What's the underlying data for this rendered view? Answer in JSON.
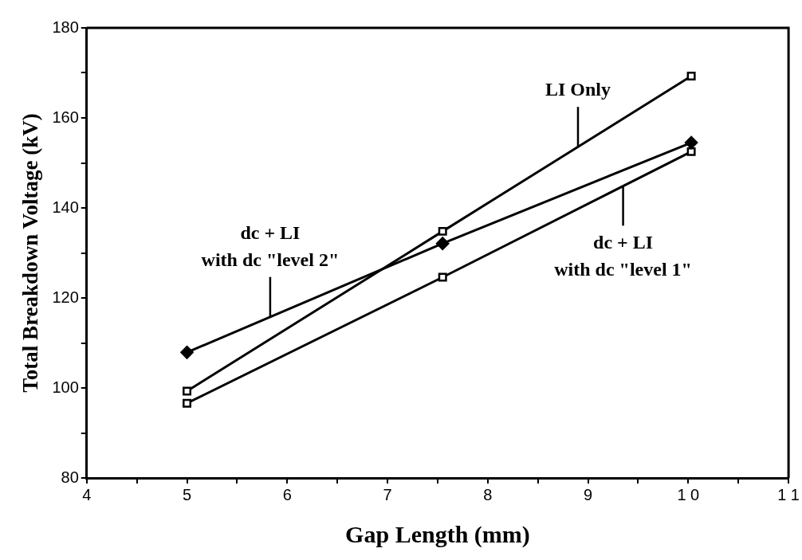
{
  "chart_data": {
    "type": "line",
    "xlabel": "Gap Length (mm)",
    "ylabel": "Total Breakdown Voltage (kV)",
    "xlim": [
      4,
      11
    ],
    "xticks": [
      4,
      {
        "value": 4.5,
        "label": null
      },
      5,
      {
        "value": 5.5,
        "label": null
      },
      6,
      {
        "value": 6.5,
        "label": null
      },
      7,
      {
        "value": 7.5,
        "label": null
      },
      8,
      {
        "value": 8.5,
        "label": null
      },
      9,
      {
        "value": 9.5,
        "label": null
      },
      {
        "value": 10,
        "label": "1 0"
      },
      {
        "value": 10.5,
        "label": null
      },
      {
        "value": 11,
        "label": "1 1"
      }
    ],
    "ylim": [
      80,
      180
    ],
    "yticks": [
      80,
      {
        "value": 90,
        "label": null
      },
      100,
      {
        "value": 110,
        "label": null
      },
      120,
      {
        "value": 130,
        "label": null
      },
      140,
      {
        "value": 150,
        "label": null
      },
      160,
      {
        "value": 170,
        "label": null
      },
      180
    ],
    "grid": false,
    "legend": false,
    "line_style": "solid",
    "series": [
      {
        "color": "#000000",
        "marker": "square",
        "x": [
          5,
          7.55,
          10.03
        ],
        "values": [
          99.3,
          134.8,
          169.3
        ]
      },
      {
        "color": "#000000",
        "marker": "diamond",
        "x": [
          5,
          7.55,
          10.03
        ],
        "values": [
          107.9,
          132.1,
          154.5
        ]
      },
      {
        "color": "#000000",
        "marker": "square",
        "x": [
          5,
          7.55,
          10.03
        ],
        "values": [
          96.6,
          124.6,
          152.5
        ]
      }
    ],
    "annotations": [
      {
        "text": "LI Only",
        "x": 8.9,
        "y": 153.6
      },
      {
        "text": "dc + LI\nwith dc \"level 2\"",
        "x": 5.83,
        "y": 115.8
      },
      {
        "text": "dc + LI\nwith dc \"level 1\"",
        "x": 9.35,
        "y": 144.9
      }
    ]
  }
}
